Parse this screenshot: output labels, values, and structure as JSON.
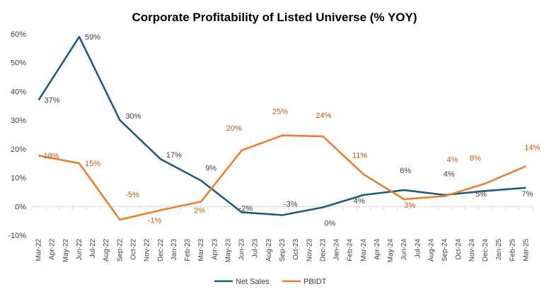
{
  "chart_data": {
    "type": "line",
    "title": "Corporate Profitability of Listed Universe (% YOY)",
    "xlabel": "",
    "ylabel": "",
    "ylim": [
      -10,
      60
    ],
    "yticks": [
      -10,
      0,
      10,
      20,
      30,
      40,
      50,
      60
    ],
    "ytick_labels": [
      "-10%",
      "0%",
      "10%",
      "20%",
      "30%",
      "40%",
      "50%",
      "60%"
    ],
    "grid": false,
    "legend_position": "bottom",
    "categories": [
      "Mar-22",
      "Apr-22",
      "May-22",
      "Jun-22",
      "Jul-22",
      "Aug-22",
      "Sep-22",
      "Oct-22",
      "Nov-22",
      "Dec-22",
      "Jan-23",
      "Feb-23",
      "Mar-23",
      "Apr-23",
      "May-23",
      "Jun-23",
      "Jul-23",
      "Aug-23",
      "Sep-23",
      "Oct-23",
      "Nov-23",
      "Dec-23",
      "Jan-24",
      "Feb-24",
      "Mar-24",
      "Apr-24",
      "May-24",
      "Jun-24",
      "Jul-24",
      "Aug-24",
      "Sep-24",
      "Oct-24",
      "Nov-24",
      "Dec-24",
      "Jan-25",
      "Feb-25",
      "Mar-25"
    ],
    "series": [
      {
        "name": "Net Sales",
        "color": "#1f5c7a",
        "points": [
          {
            "x": "Mar-22",
            "y": 37,
            "label": "37%"
          },
          {
            "x": "Jun-22",
            "y": 59,
            "label": "59%"
          },
          {
            "x": "Sep-22",
            "y": 30,
            "label": "30%"
          },
          {
            "x": "Dec-22",
            "y": 16.5,
            "label": "17%"
          },
          {
            "x": "Mar-23",
            "y": 9,
            "label": "9%"
          },
          {
            "x": "Jun-23",
            "y": -2,
            "label": "-2%"
          },
          {
            "x": "Sep-23",
            "y": -3,
            "label": "-3%"
          },
          {
            "x": "Dec-23",
            "y": -0.3,
            "label": "0%"
          },
          {
            "x": "Mar-24",
            "y": 4,
            "label": "4%"
          },
          {
            "x": "Jun-24",
            "y": 5.7,
            "label": "6%"
          },
          {
            "x": "Sep-24",
            "y": 4,
            "label": "4%"
          },
          {
            "x": "Dec-24",
            "y": 5.4,
            "label": "5%"
          },
          {
            "x": "Mar-25",
            "y": 6.5,
            "label": "7%"
          }
        ]
      },
      {
        "name": "PBIDT",
        "color": "#ed7d31",
        "points": [
          {
            "x": "Mar-22",
            "y": 17.7,
            "label": "18%"
          },
          {
            "x": "Jun-22",
            "y": 15,
            "label": "15%"
          },
          {
            "x": "Sep-22",
            "y": -4.6,
            "label": "-5%"
          },
          {
            "x": "Dec-22",
            "y": -1.3,
            "label": "-1%"
          },
          {
            "x": "Mar-23",
            "y": 1.7,
            "label": "2%"
          },
          {
            "x": "Jun-23",
            "y": 19.5,
            "label": "20%"
          },
          {
            "x": "Sep-23",
            "y": 24.7,
            "label": "25%"
          },
          {
            "x": "Dec-23",
            "y": 24.4,
            "label": "24%"
          },
          {
            "x": "Mar-24",
            "y": 11.2,
            "label": "11%"
          },
          {
            "x": "Jun-24",
            "y": 2.5,
            "label": "3%"
          },
          {
            "x": "Sep-24",
            "y": 3.6,
            "label": "4%"
          },
          {
            "x": "Dec-24",
            "y": 8,
            "label": "8%"
          },
          {
            "x": "Mar-25",
            "y": 14,
            "label": "14%"
          }
        ]
      }
    ]
  }
}
